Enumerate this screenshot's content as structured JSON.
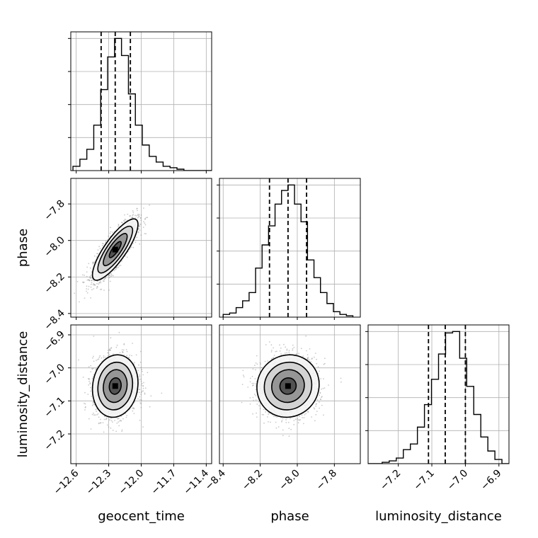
{
  "chart_data": {
    "type": "corner",
    "parameters": [
      "geocent_time",
      "phase",
      "luminosity_distance"
    ],
    "axis_labels": {
      "x": [
        "geocent_time",
        "phase",
        "luminosity_distance"
      ],
      "y": [
        "",
        "phase",
        "luminosity_distance"
      ]
    },
    "ranges": {
      "geocent_time": [
        -12.65,
        -11.35
      ],
      "phase": [
        -8.42,
        -7.66
      ],
      "luminosity_distance": [
        -7.29,
        -6.87
      ]
    },
    "ticks": {
      "geocent_time": {
        "values": [
          -12.6,
          -12.3,
          -12.0,
          -11.7,
          -11.4
        ],
        "labels": [
          "−12.6",
          "−12.3",
          "−12.0",
          "−11.7",
          "−11.4"
        ]
      },
      "phase": {
        "values": [
          -8.4,
          -8.2,
          -8.0,
          -7.8
        ],
        "labels": [
          "−8.4",
          "−8.2",
          "−8.0",
          "−7.8"
        ]
      },
      "luminosity_distance": {
        "values": [
          -7.2,
          -7.1,
          -7.0,
          -6.9
        ],
        "labels": [
          "−7.2",
          "−7.1",
          "−7.0",
          "−6.9"
        ]
      }
    },
    "quantiles": {
      "geocent_time": [
        -12.37,
        -12.24,
        -12.1
      ],
      "phase": [
        -8.15,
        -8.05,
        -7.95
      ],
      "luminosity_distance": [
        -7.11,
        -7.06,
        -7.0
      ]
    },
    "histograms": {
      "geocent_time": {
        "edges": [
          -12.63,
          -12.566,
          -12.502,
          -12.438,
          -12.374,
          -12.31,
          -12.246,
          -12.182,
          -12.118,
          -12.054,
          -11.99,
          -11.926,
          -11.862,
          -11.798,
          -11.734,
          -11.67,
          -11.606,
          -11.542,
          -11.478,
          -11.414,
          -11.35
        ],
        "counts": [
          3,
          8,
          15,
          32,
          57,
          80,
          93,
          81,
          54,
          32,
          18,
          10,
          6,
          3,
          2,
          1,
          0,
          0,
          0,
          0
        ]
      },
      "phase": {
        "edges": [
          -8.4,
          -8.365,
          -8.33,
          -8.295,
          -8.26,
          -8.225,
          -8.19,
          -8.155,
          -8.12,
          -8.085,
          -8.05,
          -8.015,
          -7.98,
          -7.945,
          -7.91,
          -7.875,
          -7.84,
          -7.805,
          -7.77,
          -7.735,
          -7.7
        ],
        "counts": [
          2,
          3,
          7,
          12,
          18,
          36,
          53,
          67,
          83,
          93,
          97,
          83,
          70,
          42,
          29,
          18,
          10,
          4,
          2,
          1
        ]
      },
      "luminosity_distance": {
        "edges": [
          -7.29,
          -7.269,
          -7.248,
          -7.227,
          -7.206,
          -7.185,
          -7.164,
          -7.143,
          -7.122,
          -7.101,
          -7.08,
          -7.059,
          -7.038,
          -7.017,
          -6.996,
          -6.975,
          -6.954,
          -6.933,
          -6.912,
          -6.891,
          -6.87
        ],
        "counts": [
          0,
          0,
          1,
          2,
          4,
          10,
          14,
          26,
          42,
          60,
          78,
          93,
          94,
          75,
          55,
          35,
          19,
          9,
          3,
          0
        ]
      }
    },
    "joint": [
      {
        "x": "geocent_time",
        "y": "phase",
        "mean": [
          -12.24,
          -8.05
        ],
        "sd": [
          0.1,
          0.08
        ],
        "corr": 0.82
      },
      {
        "x": "geocent_time",
        "y": "luminosity_distance",
        "mean": [
          -12.24,
          -7.055
        ],
        "sd": [
          0.1,
          0.045
        ],
        "corr": 0.1
      },
      {
        "x": "phase",
        "y": "luminosity_distance",
        "mean": [
          -8.05,
          -7.055
        ],
        "sd": [
          0.08,
          0.045
        ],
        "corr": 0.05
      }
    ],
    "grid": true
  }
}
